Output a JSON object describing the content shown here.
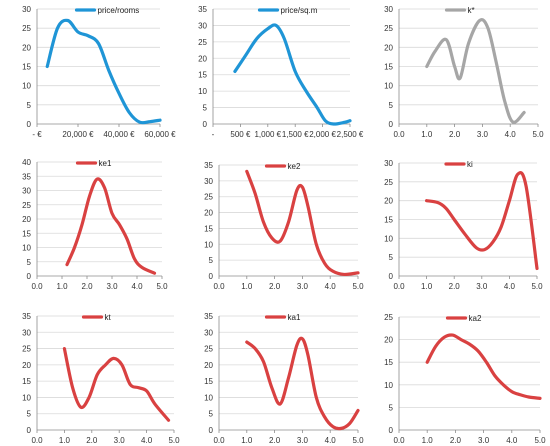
{
  "chart_data": [
    {
      "type": "line",
      "legend": "price/rooms",
      "legend_position": "top",
      "color": "#1f95d6",
      "ylim": [
        0,
        30
      ],
      "yticks": [
        0,
        5,
        10,
        15,
        20,
        25,
        30
      ],
      "xlim": [
        0,
        60000
      ],
      "xticks": [
        {
          "v": 0,
          "label": "-   €"
        },
        {
          "v": 20000,
          "label": "20,000 €"
        },
        {
          "v": 40000,
          "label": "40,000 €"
        },
        {
          "v": 60000,
          "label": "60,000 €"
        }
      ],
      "x": [
        5000,
        10000,
        15000,
        20000,
        25000,
        30000,
        35000,
        40000,
        45000,
        50000,
        55000,
        60000
      ],
      "y": [
        15,
        25,
        27,
        24,
        23,
        21,
        14,
        8,
        3,
        0.5,
        0.6,
        1
      ],
      "grid": true
    },
    {
      "type": "line",
      "legend": "price/sq.m",
      "legend_position": "top",
      "color": "#1f95d6",
      "ylim": [
        0,
        35
      ],
      "yticks": [
        0,
        5,
        10,
        15,
        20,
        25,
        30,
        35
      ],
      "xlim": [
        0,
        2500
      ],
      "xticks": [
        {
          "v": 0,
          "label": "-"
        },
        {
          "v": 500,
          "label": "500 €"
        },
        {
          "v": 1000,
          "label": "1,000 €"
        },
        {
          "v": 1500,
          "label": "1,500 €"
        },
        {
          "v": 2000,
          "label": "2,000 €"
        },
        {
          "v": 2500,
          "label": "2,500 €"
        }
      ],
      "x": [
        400,
        600,
        800,
        1000,
        1150,
        1300,
        1500,
        1700,
        1900,
        2050,
        2200,
        2400,
        2500
      ],
      "y": [
        16,
        21,
        26,
        29,
        30,
        26,
        16,
        10,
        5,
        1,
        0,
        0.5,
        1
      ],
      "grid": true
    },
    {
      "type": "line",
      "legend": "k*",
      "legend_position": "top",
      "color": "#a6a6a6",
      "ylim": [
        0,
        30
      ],
      "yticks": [
        0,
        5,
        10,
        15,
        20,
        25,
        30
      ],
      "xlim": [
        0,
        5
      ],
      "xticks": [
        {
          "v": 0,
          "label": "0.0"
        },
        {
          "v": 1,
          "label": "1.0"
        },
        {
          "v": 2,
          "label": "2.0"
        },
        {
          "v": 3,
          "label": "3.0"
        },
        {
          "v": 4,
          "label": "4.0"
        },
        {
          "v": 5,
          "label": "5.0"
        }
      ],
      "x": [
        1.0,
        1.3,
        1.7,
        2.0,
        2.2,
        2.5,
        2.9,
        3.2,
        3.5,
        3.8,
        4.1,
        4.5
      ],
      "y": [
        15,
        19,
        22,
        15,
        12,
        21,
        27,
        25,
        16,
        6,
        0.5,
        3
      ],
      "grid": true
    },
    {
      "type": "line",
      "legend": "ke1",
      "legend_position": "top",
      "color": "#d94141",
      "ylim": [
        0,
        40
      ],
      "yticks": [
        0,
        5,
        10,
        15,
        20,
        25,
        30,
        35,
        40
      ],
      "xlim": [
        0,
        5
      ],
      "xticks": [
        {
          "v": 0,
          "label": "0.0"
        },
        {
          "v": 1,
          "label": "1.0"
        },
        {
          "v": 2,
          "label": "2.0"
        },
        {
          "v": 3,
          "label": "3.0"
        },
        {
          "v": 4,
          "label": "4.0"
        },
        {
          "v": 5,
          "label": "5.0"
        }
      ],
      "x": [
        1.2,
        1.5,
        1.8,
        2.1,
        2.4,
        2.7,
        3.0,
        3.3,
        3.6,
        3.9,
        4.2,
        4.7
      ],
      "y": [
        4,
        10,
        18,
        28,
        34,
        31,
        22,
        18,
        13,
        6,
        3,
        1
      ],
      "grid": true
    },
    {
      "type": "line",
      "legend": "ke2",
      "legend_position": "top",
      "color": "#d94141",
      "ylim": [
        0,
        35
      ],
      "yticks": [
        0,
        5,
        10,
        15,
        20,
        25,
        30,
        35
      ],
      "xlim": [
        0,
        5
      ],
      "xticks": [
        {
          "v": 0,
          "label": "0.0"
        },
        {
          "v": 1,
          "label": "1.0"
        },
        {
          "v": 2,
          "label": "2.0"
        },
        {
          "v": 3,
          "label": "3.0"
        },
        {
          "v": 4,
          "label": "4.0"
        },
        {
          "v": 5,
          "label": "5.0"
        }
      ],
      "x": [
        1.0,
        1.3,
        1.6,
        1.9,
        2.2,
        2.5,
        2.8,
        3.0,
        3.2,
        3.5,
        3.8,
        4.1,
        4.5,
        5.0
      ],
      "y": [
        33,
        26,
        17,
        12,
        11,
        17,
        27,
        28,
        22,
        10,
        4,
        1.5,
        0.5,
        1
      ],
      "grid": true
    },
    {
      "type": "line",
      "legend": "ki",
      "legend_position": "top",
      "color": "#d94141",
      "ylim": [
        0,
        30
      ],
      "yticks": [
        0,
        5,
        10,
        15,
        20,
        25,
        30
      ],
      "xlim": [
        0,
        5
      ],
      "xticks": [
        {
          "v": 0,
          "label": "0.0"
        },
        {
          "v": 1,
          "label": "1.0"
        },
        {
          "v": 2,
          "label": "2.0"
        },
        {
          "v": 3,
          "label": "3.0"
        },
        {
          "v": 4,
          "label": "4.0"
        },
        {
          "v": 5,
          "label": "5.0"
        }
      ],
      "x": [
        1.0,
        1.4,
        1.7,
        2.0,
        2.4,
        2.8,
        3.1,
        3.4,
        3.7,
        4.0,
        4.3,
        4.6,
        5.0
      ],
      "y": [
        20,
        19.5,
        18,
        15,
        11,
        7.5,
        7,
        9,
        13,
        20,
        27,
        24,
        2
      ],
      "grid": true
    },
    {
      "type": "line",
      "legend": "kt",
      "legend_position": "top",
      "color": "#d94141",
      "ylim": [
        0,
        35
      ],
      "yticks": [
        0,
        5,
        10,
        15,
        20,
        25,
        30,
        35
      ],
      "xlim": [
        0,
        5
      ],
      "xticks": [
        {
          "v": 0,
          "label": "0.0"
        },
        {
          "v": 1,
          "label": "1.0"
        },
        {
          "v": 2,
          "label": "2.0"
        },
        {
          "v": 3,
          "label": "3.0"
        },
        {
          "v": 4,
          "label": "4.0"
        },
        {
          "v": 5,
          "label": "5.0"
        }
      ],
      "x": [
        1.0,
        1.3,
        1.6,
        1.9,
        2.2,
        2.5,
        2.8,
        3.1,
        3.4,
        3.7,
        4.0,
        4.3,
        4.8
      ],
      "y": [
        25,
        13,
        7,
        10,
        17,
        20,
        22,
        20,
        14,
        13,
        12,
        8,
        3
      ],
      "grid": true
    },
    {
      "type": "line",
      "legend": "ka1",
      "legend_position": "top",
      "color": "#d94141",
      "ylim": [
        0,
        35
      ],
      "yticks": [
        0,
        5,
        10,
        15,
        20,
        25,
        30,
        35
      ],
      "xlim": [
        0,
        5
      ],
      "xticks": [
        {
          "v": 0,
          "label": "0.0"
        },
        {
          "v": 1,
          "label": "1.0"
        },
        {
          "v": 2,
          "label": "2.0"
        },
        {
          "v": 3,
          "label": "3.0"
        },
        {
          "v": 4,
          "label": "4.0"
        },
        {
          "v": 5,
          "label": "5.0"
        }
      ],
      "x": [
        1.0,
        1.3,
        1.6,
        1.9,
        2.2,
        2.5,
        2.8,
        3.0,
        3.2,
        3.5,
        3.8,
        4.1,
        4.4,
        4.7,
        5.0
      ],
      "y": [
        27,
        25,
        21,
        13,
        8,
        16,
        26,
        28,
        23,
        10,
        4,
        1,
        0.5,
        2,
        6
      ],
      "grid": true
    },
    {
      "type": "line",
      "legend": "ka2",
      "legend_position": "top",
      "color": "#d94141",
      "ylim": [
        0,
        25
      ],
      "yticks": [
        0,
        5,
        10,
        15,
        20,
        25
      ],
      "xlim": [
        0,
        5
      ],
      "xticks": [
        {
          "v": 0,
          "label": "0.0"
        },
        {
          "v": 1,
          "label": "1.0"
        },
        {
          "v": 2,
          "label": "2.0"
        },
        {
          "v": 3,
          "label": "3.0"
        },
        {
          "v": 4,
          "label": "4.0"
        },
        {
          "v": 5,
          "label": "5.0"
        }
      ],
      "x": [
        1.0,
        1.3,
        1.6,
        1.9,
        2.2,
        2.5,
        2.8,
        3.1,
        3.4,
        3.7,
        4.0,
        4.3,
        4.6,
        5.0
      ],
      "y": [
        15,
        18.5,
        20.5,
        21,
        20,
        19,
        17.5,
        15,
        12,
        10,
        8.5,
        7.8,
        7.3,
        7
      ],
      "grid": true
    }
  ]
}
